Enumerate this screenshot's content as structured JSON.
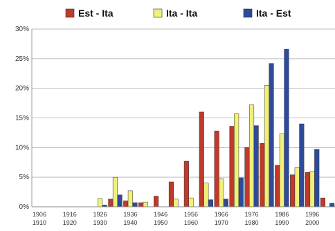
{
  "chart_data": {
    "type": "bar",
    "title": "",
    "xlabel": "",
    "ylabel": "",
    "ylim": [
      0,
      0.3
    ],
    "yticks": [
      "0%",
      "5%",
      "10%",
      "15%",
      "20%",
      "25%",
      "30%"
    ],
    "yticks_values": [
      0,
      0.05,
      0.1,
      0.15,
      0.2,
      0.25,
      0.3
    ],
    "grid": true,
    "legend_position": "top",
    "categories": [
      [
        "1906",
        "1910"
      ],
      [
        "",
        ""
      ],
      [
        "1916",
        "1920"
      ],
      [
        "",
        ""
      ],
      [
        "1926",
        "1930"
      ],
      [
        "",
        ""
      ],
      [
        "1936",
        "1940"
      ],
      [
        "",
        ""
      ],
      [
        "1946",
        "1950"
      ],
      [
        "",
        ""
      ],
      [
        "1956",
        "1960"
      ],
      [
        "",
        ""
      ],
      [
        "1966",
        "1970"
      ],
      [
        "",
        ""
      ],
      [
        "1976",
        "1980"
      ],
      [
        "",
        ""
      ],
      [
        "1986",
        "1990"
      ],
      [
        "",
        ""
      ],
      [
        "1996",
        "2000"
      ],
      [
        "",
        ""
      ]
    ],
    "series": [
      {
        "name": "Est - Ita",
        "color": "#c0392b",
        "values": [
          0,
          0,
          0,
          0,
          0,
          0.013,
          0.01,
          0.007,
          0.018,
          0.042,
          0.077,
          0.16,
          0.128,
          0.136,
          0.1,
          0.107,
          0.07,
          0.054,
          0.058,
          0.015
        ]
      },
      {
        "name": "Ita - Ita",
        "color": "#f0f07a",
        "values": [
          0,
          0,
          0,
          0,
          0.014,
          0.05,
          0.027,
          0.008,
          0,
          0.013,
          0.015,
          0.04,
          0.047,
          0.157,
          0.172,
          0.205,
          0.123,
          0.066,
          0.06,
          0
        ]
      },
      {
        "name": "Ita - Est",
        "color": "#2e4b9b",
        "values": [
          0,
          0,
          0,
          0,
          0.003,
          0.02,
          0.007,
          0,
          0,
          0,
          0,
          0.012,
          0.013,
          0.049,
          0.137,
          0.242,
          0.266,
          0.14,
          0.097,
          0.006
        ]
      }
    ]
  }
}
